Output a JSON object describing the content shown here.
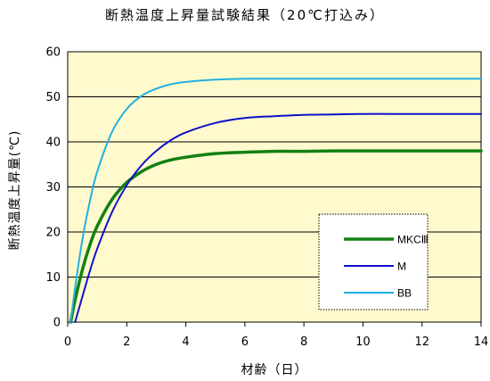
{
  "chart_data": {
    "type": "line",
    "title": "断熱温度上昇量試験結果（20℃打込み）",
    "xlabel": "材齢（日）",
    "ylabel": "断熱温度上昇量(℃)",
    "xlim": [
      0,
      14
    ],
    "ylim": [
      0,
      60
    ],
    "x_ticks": [
      "0",
      "2",
      "4",
      "6",
      "8",
      "10",
      "12",
      "14"
    ],
    "y_ticks": [
      "0",
      "10",
      "20",
      "30",
      "40",
      "50",
      "60"
    ],
    "grid": "horizontal",
    "background": "#fffacd",
    "legend_position": "bottom-right",
    "x": [
      0.1,
      0.25,
      0.5,
      0.75,
      1,
      1.5,
      2,
      2.5,
      3,
      3.5,
      4,
      5,
      6,
      7,
      8,
      9,
      10,
      11,
      12,
      13,
      14
    ],
    "series": [
      {
        "name": "MKCⅢ",
        "color": "#138013",
        "values": [
          0,
          4.9,
          11.7,
          17.1,
          21.3,
          27.2,
          31.0,
          33.4,
          35.0,
          36.0,
          36.6,
          37.4,
          37.7,
          37.9,
          37.9,
          38.0,
          38.0,
          38.0,
          38.0,
          38.0,
          38.0
        ]
      },
      {
        "name": "M",
        "color": "#1010cc",
        "values": [
          null,
          0,
          5.7,
          11.3,
          16.3,
          24.4,
          30.4,
          34.8,
          38.0,
          40.4,
          42.1,
          44.2,
          45.3,
          45.7,
          46.0,
          46.1,
          46.2,
          46.2,
          46.2,
          46.2,
          46.2
        ]
      },
      {
        "name": "BB",
        "color": "#22b0e0",
        "values": [
          0,
          7.6,
          18.4,
          26.8,
          33.4,
          42.2,
          47.3,
          50.2,
          51.8,
          52.8,
          53.3,
          53.8,
          54.0,
          54.0,
          54.0,
          54.0,
          54.0,
          54.0,
          54.0,
          54.0,
          54.0
        ]
      }
    ]
  }
}
